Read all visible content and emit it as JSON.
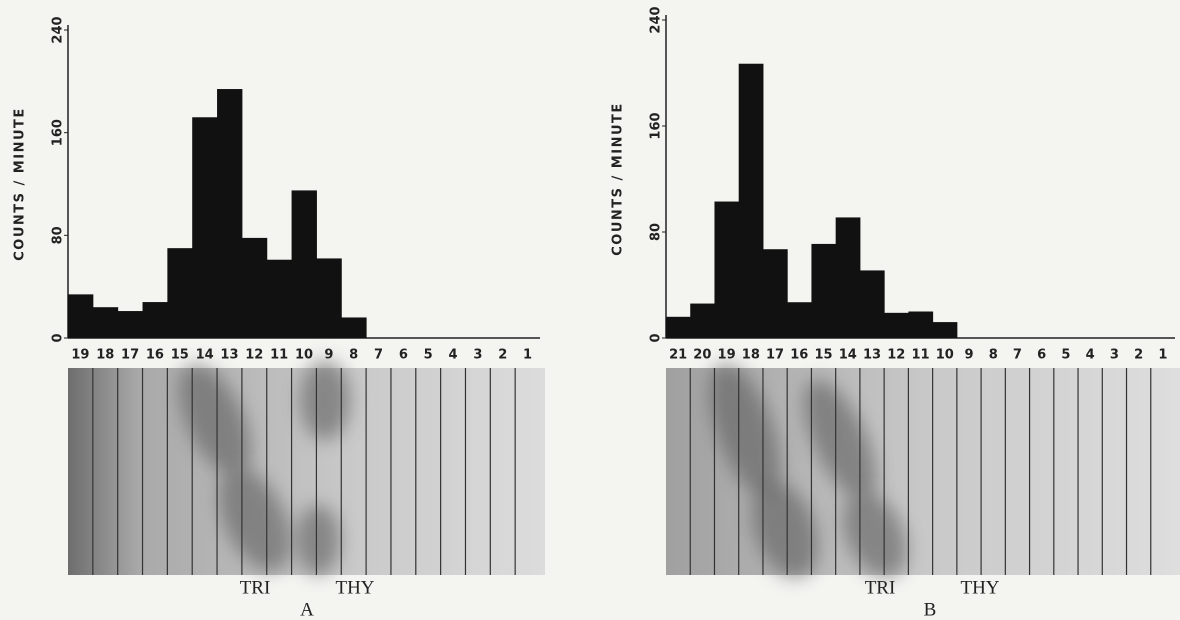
{
  "chart_data": [
    {
      "type": "bar",
      "ylabel": "COUNTS / MINUTE",
      "panel_label": "A",
      "categories": [
        "19",
        "18",
        "17",
        "16",
        "15",
        "14",
        "13",
        "12",
        "11",
        "10",
        "9",
        "8",
        "7",
        "6",
        "5",
        "4",
        "3",
        "2",
        "1"
      ],
      "values": [
        34,
        24,
        21,
        28,
        70,
        172,
        194,
        78,
        61,
        115,
        62,
        16,
        0,
        0,
        0,
        0,
        0,
        0,
        0
      ],
      "color": "#111111",
      "ylim": [
        0,
        240
      ],
      "yticks": [
        0,
        80,
        160,
        240
      ],
      "annotations": [
        "TRI",
        "THY"
      ]
    },
    {
      "type": "bar",
      "ylabel": "COUNTS / MINUTE",
      "panel_label": "B",
      "categories": [
        "21",
        "20",
        "19",
        "18",
        "17",
        "16",
        "15",
        "14",
        "13",
        "12",
        "11",
        "10",
        "9",
        "8",
        "7",
        "6",
        "5",
        "4",
        "3",
        "2",
        "1"
      ],
      "values": [
        16,
        26,
        103,
        207,
        67,
        27,
        71,
        91,
        51,
        19,
        20,
        12,
        0,
        0,
        0,
        0,
        0,
        0,
        0,
        0,
        0
      ],
      "color": "#111111",
      "ylim": [
        0,
        240
      ],
      "yticks": [
        0,
        80,
        160,
        240
      ],
      "annotations": [
        "TRI",
        "THY"
      ]
    }
  ]
}
